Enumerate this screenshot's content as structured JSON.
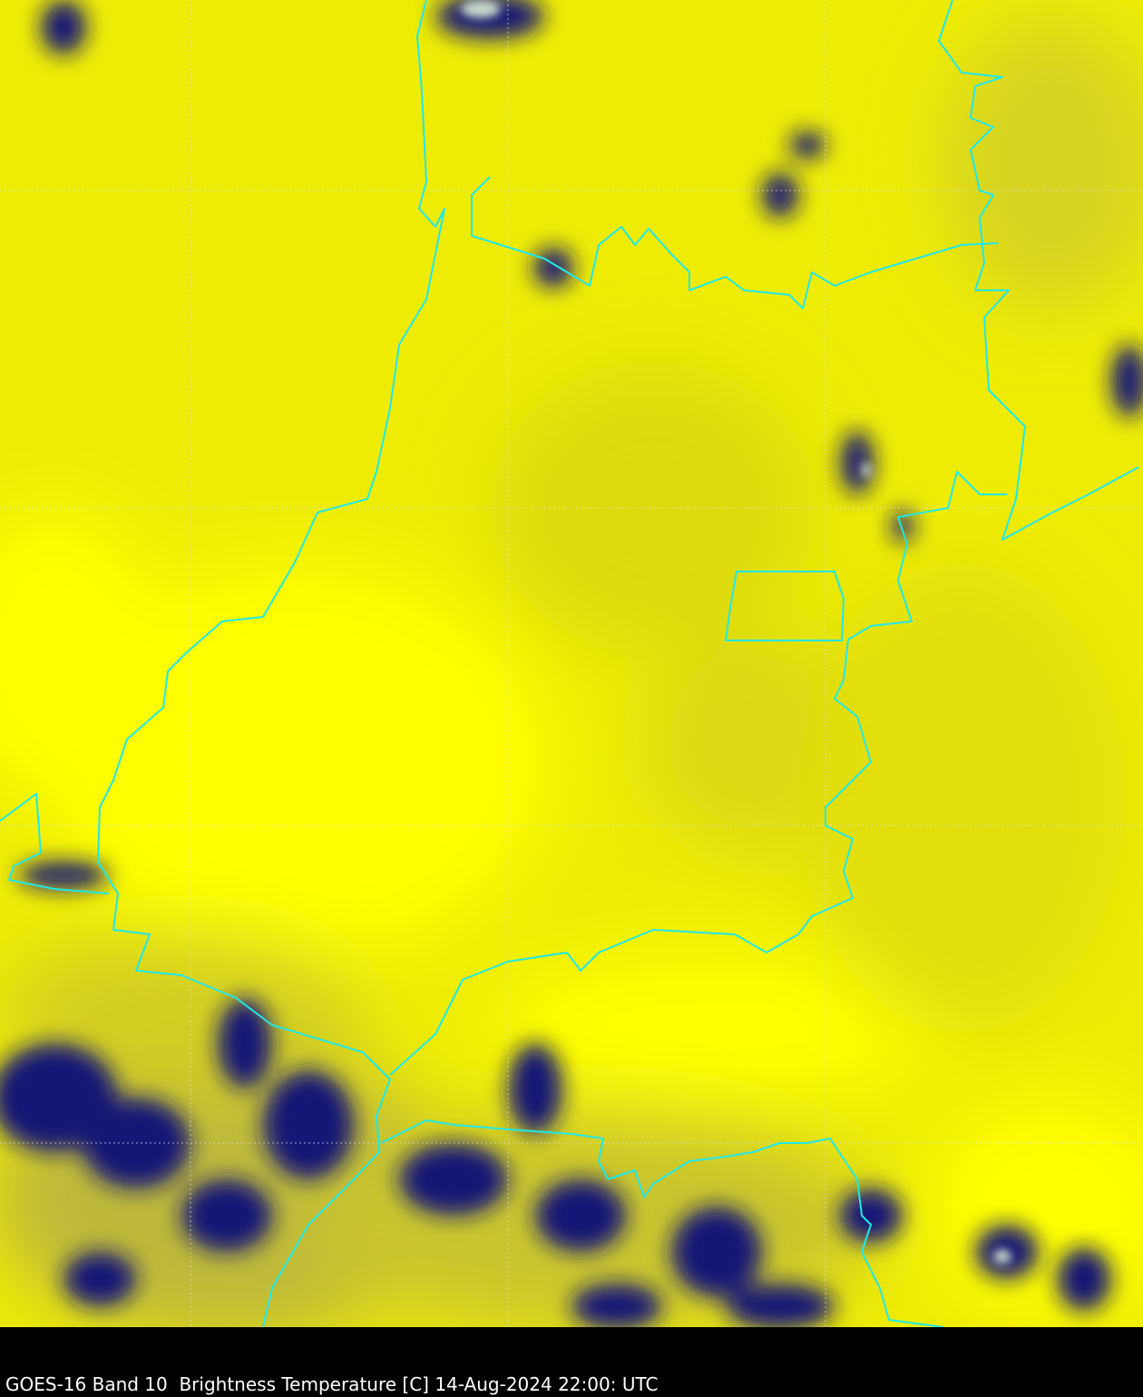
{
  "caption": "GOES-16 Band 10  Brightness Temperature [C] 14-Aug-2024 22:00: UTC",
  "colors": {
    "warm_surface": "#ffff00",
    "mid_surface": "#e4e20a",
    "cold_cloud": "#0a0a6e",
    "coldest_cloud": "#c8d8c8",
    "borders": "#20e8e8",
    "gridlines": "#e0e0e0",
    "background": "#000000"
  },
  "layers": [
    "brightness-temperature",
    "state-borders",
    "lat-lon-grid"
  ]
}
